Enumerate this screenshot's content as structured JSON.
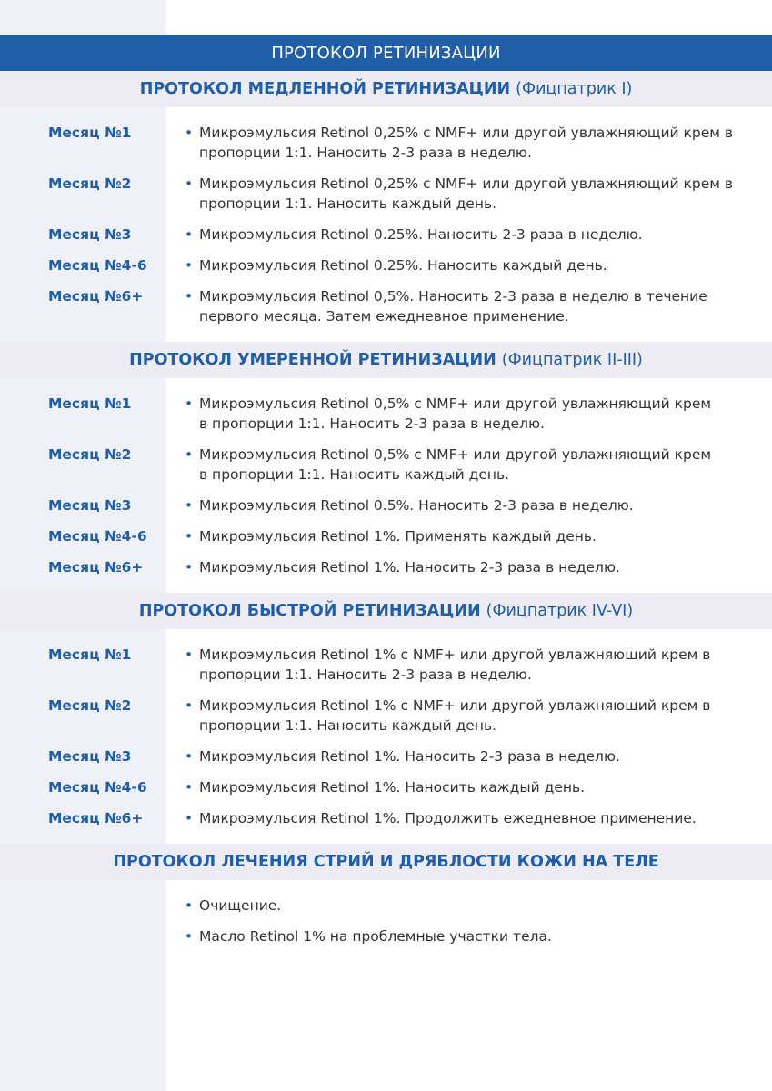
{
  "title": "ПРОТОКОЛ РЕТИНИЗАЦИИ",
  "sections": [
    {
      "title": "ПРОТОКОЛ МЕДЛЕННОЙ РЕТИНИЗАЦИИ",
      "subtitle": "(Фицпатрик I)",
      "rows": [
        {
          "label": "Месяц №1",
          "text": "Микроэмульсия Retinol 0,25% с NMF+ или другой увлажняющий крем в пропорции 1:1. Наносить 2-3 раза в неделю."
        },
        {
          "label": "Месяц №2",
          "text": "Микроэмульсия Retinol 0,25% с NMF+ или другой увлажняющий крем в пропорции 1:1. Наносить каждый день."
        },
        {
          "label": "Месяц №3",
          "text": "Микроэмульсия Retinol 0.25%. Наносить 2-3 раза в неделю."
        },
        {
          "label": "Месяц №4-6",
          "text": "Микроэмульсия Retinol 0.25%. Наносить каждый день."
        },
        {
          "label": "Месяц №6+",
          "text": "Микроэмульсия Retinol 0,5%. Наносить 2-3 раза в неделю в течение первого месяца. Затем ежедневное применение."
        }
      ]
    },
    {
      "title": "ПРОТОКОЛ УМЕРЕННОЙ РЕТИНИЗАЦИИ",
      "subtitle": "(Фицпатрик II-III)",
      "rows": [
        {
          "label": "Месяц №1",
          "text": "Микроэмульсия Retinol 0,5% с NMF+ или другой увлажняющий крем в пропорции 1:1. Наносить 2-3 раза в неделю."
        },
        {
          "label": "Месяц №2",
          "text": "Микроэмульсия Retinol 0,5% с NMF+ или другой увлажняющий крем в пропорции 1:1. Наносить каждый день."
        },
        {
          "label": "Месяц №3",
          "text": "Микроэмульсия Retinol 0.5%. Наносить 2-3 раза в неделю."
        },
        {
          "label": "Месяц №4-6",
          "text": "Микроэмульсия Retinol 1%. Применять каждый день."
        },
        {
          "label": "Месяц №6+",
          "text": "Микроэмульсия Retinol 1%. Наносить 2-3 раза в неделю."
        }
      ]
    },
    {
      "title": "ПРОТОКОЛ БЫСТРОЙ РЕТИНИЗАЦИИ",
      "subtitle": "(Фицпатрик IV-VI)",
      "rows": [
        {
          "label": "Месяц №1",
          "text": "Микроэмульсия Retinol 1% с NMF+ или другой увлажняющий крем в пропорции 1:1. Наносить 2-3 раза в неделю."
        },
        {
          "label": "Месяц №2",
          "text": "Микроэмульсия Retinol 1% с NMF+ или другой увлажняющий крем в пропорции 1:1. Наносить каждый день."
        },
        {
          "label": "Месяц №3",
          "text": "Микроэмульсия Retinol 1%. Наносить 2-3 раза в неделю."
        },
        {
          "label": "Месяц №4-6",
          "text": "Микроэмульсия Retinol 1%. Наносить каждый день."
        },
        {
          "label": "Месяц №6+",
          "text": "Микроэмульсия Retinol 1%. Продолжить ежедневное применение."
        }
      ]
    },
    {
      "title": "ПРОТОКОЛ ЛЕЧЕНИЯ СТРИЙ И ДРЯБЛОСТИ КОЖИ НА ТЕЛЕ",
      "subtitle": "",
      "rows": [
        {
          "label": "",
          "text": "Очищение."
        },
        {
          "label": "",
          "text": "Масло Retinol 1% на проблемные участки тела."
        }
      ]
    }
  ],
  "colors": {
    "accent": "#215ea8",
    "band": "#ececf2",
    "sidebar": "#f0f1f6"
  }
}
